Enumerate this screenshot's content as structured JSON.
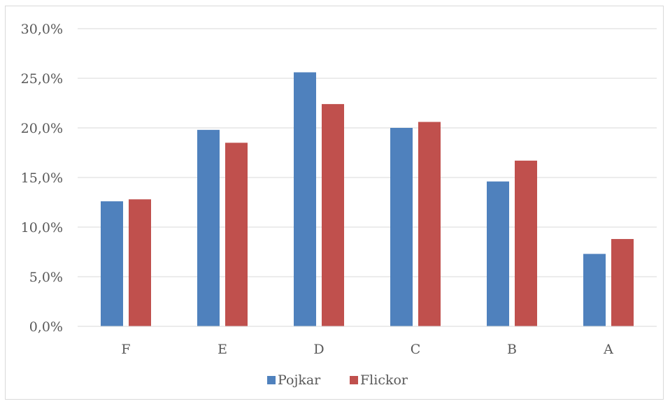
{
  "chart_data": {
    "type": "bar",
    "categories": [
      "F",
      "E",
      "D",
      "C",
      "B",
      "A"
    ],
    "series": [
      {
        "name": "Pojkar",
        "color": "#4f81bd",
        "values": [
          12.6,
          19.8,
          25.6,
          20.0,
          14.6,
          7.3
        ]
      },
      {
        "name": "Flickor",
        "color": "#c0504d",
        "values": [
          12.8,
          18.5,
          22.4,
          20.6,
          16.7,
          8.8
        ]
      }
    ],
    "yticks": [
      "0,0%",
      "5,0%",
      "10,0%",
      "15,0%",
      "20,0%",
      "25,0%",
      "30,0%"
    ],
    "ylim": [
      0,
      30
    ],
    "ytick_step": 5,
    "grid": true,
    "legend": "bottom",
    "title": "",
    "xlabel": "",
    "ylabel": ""
  }
}
